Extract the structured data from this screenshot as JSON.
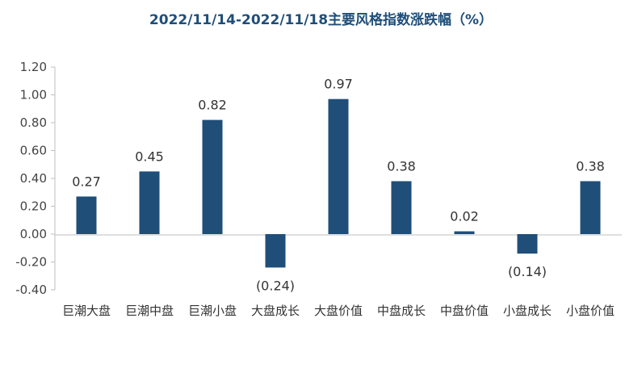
{
  "chart_data": {
    "type": "bar",
    "title": "2022/11/14-2022/11/18主要风格指数涨跌幅（%）",
    "categories": [
      "巨潮大盘",
      "巨潮中盘",
      "巨潮小盘",
      "大盘成长",
      "大盘价值",
      "中盘成长",
      "中盘价值",
      "小盘成长",
      "小盘价值"
    ],
    "values": [
      0.27,
      0.45,
      0.82,
      -0.24,
      0.97,
      0.38,
      0.02,
      -0.14,
      0.38
    ],
    "data_labels": [
      "0.27",
      "0.45",
      "0.82",
      "(0.24)",
      "0.97",
      "0.38",
      "0.02",
      "(0.14)",
      "0.38"
    ],
    "yticks": [
      "1.20",
      "1.00",
      "0.80",
      "0.60",
      "0.40",
      "0.20",
      "0.00",
      "-0.20",
      "-0.40"
    ],
    "ylim": [
      -0.4,
      1.2
    ],
    "bar_color": "#1f4e79",
    "grid": false,
    "legend": "none"
  }
}
